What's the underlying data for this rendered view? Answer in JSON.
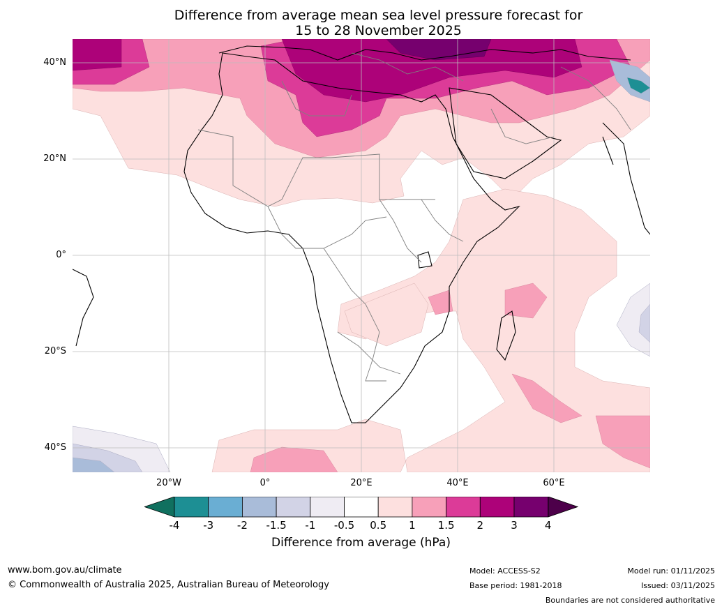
{
  "title": {
    "line1": "Difference from average mean sea level pressure forecast for",
    "line2": "15 to 28 November 2025"
  },
  "map": {
    "region": "Africa and Indian Ocean",
    "lat_labels": [
      "40°N",
      "20°N",
      "0°",
      "20°S",
      "40°S"
    ],
    "lon_labels": [
      "20°W",
      "0°",
      "20°E",
      "40°E",
      "60°E"
    ]
  },
  "colorbar": {
    "ticks": [
      "-4",
      "-3",
      "-2",
      "-1.5",
      "-1",
      "-0.5",
      "0.5",
      "1",
      "1.5",
      "2",
      "3",
      "4"
    ],
    "colors": [
      "#1d8f94",
      "#6aaed3",
      "#a9bcd9",
      "#d2d3e6",
      "#efecf3",
      "#ffffff",
      "#fde0df",
      "#f7a0b9",
      "#dc3b98",
      "#ad0279",
      "#76006e"
    ],
    "low_color": "#10705f",
    "high_color": "#4d004a",
    "label": "Difference from average (hPa)"
  },
  "footer": {
    "website": "www.bom.gov.au/climate",
    "copyright": "© Commonwealth of Australia 2025, Australian Bureau of Meteorology",
    "model": "Model: ACCESS-S2",
    "base_period": "Base period: 1981-2018",
    "model_run": "Model run: 01/11/2025",
    "issued": "Issued: 03/11/2025",
    "disclaimer": "Boundaries are not considered authoritative"
  }
}
